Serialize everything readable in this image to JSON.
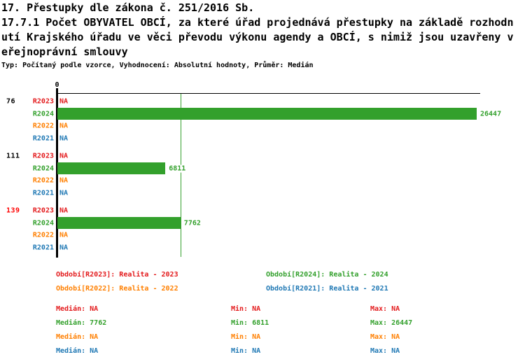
{
  "title": {
    "line1": "17. Přestupky dle zákona č. 251/2016 Sb.",
    "line2": "17.7.1 Počet OBYVATEL OBCÍ, za které úřad projednává přestupky na základě rozhodn",
    "line3": "utí Krajského úřadu ve věci převodu výkonu agendy a OBCÍ, s nimiž jsou uzavřeny v",
    "line4": "eřejnoprávní smlouvy",
    "meta": "Typ: Počítaný podle vzorce, Vyhodnocení: Absolutní hodnoty, Průměr: Medián"
  },
  "colors": {
    "r2023": "#e31a1c",
    "r2024": "#33a02c",
    "r2022": "#ff7f00",
    "r2021": "#1f78b4",
    "axis": "#000000",
    "median_line": "#33a02c",
    "highlight_group_label": "#ff0000"
  },
  "chart_data": {
    "type": "bar",
    "orientation": "horizontal",
    "x_axis": {
      "zero_label": "0",
      "max_value": 26447
    },
    "median_line_value": 7762,
    "series_order": [
      "R2023",
      "R2024",
      "R2022",
      "R2021"
    ],
    "na_text": "NA",
    "groups": [
      {
        "label": "76",
        "label_color": "#000000",
        "rows": [
          {
            "series": "R2023",
            "color": "#e31a1c",
            "value": null,
            "display": "NA"
          },
          {
            "series": "R2024",
            "color": "#33a02c",
            "value": 26447,
            "display": "26447"
          },
          {
            "series": "R2022",
            "color": "#ff7f00",
            "value": null,
            "display": "NA"
          },
          {
            "series": "R2021",
            "color": "#1f78b4",
            "value": null,
            "display": "NA"
          }
        ]
      },
      {
        "label": "111",
        "label_color": "#000000",
        "rows": [
          {
            "series": "R2023",
            "color": "#e31a1c",
            "value": null,
            "display": "NA"
          },
          {
            "series": "R2024",
            "color": "#33a02c",
            "value": 6811,
            "display": "6811"
          },
          {
            "series": "R2022",
            "color": "#ff7f00",
            "value": null,
            "display": "NA"
          },
          {
            "series": "R2021",
            "color": "#1f78b4",
            "value": null,
            "display": "NA"
          }
        ]
      },
      {
        "label": "139",
        "label_color": "#ff0000",
        "rows": [
          {
            "series": "R2023",
            "color": "#e31a1c",
            "value": null,
            "display": "NA"
          },
          {
            "series": "R2024",
            "color": "#33a02c",
            "value": 7762,
            "display": "7762"
          },
          {
            "series": "R2022",
            "color": "#ff7f00",
            "value": null,
            "display": "NA"
          },
          {
            "series": "R2021",
            "color": "#1f78b4",
            "value": null,
            "display": "NA"
          }
        ]
      }
    ]
  },
  "legend": [
    {
      "label": "Období[R2023]: Realita - 2023",
      "color": "#e31a1c"
    },
    {
      "label": "Období[R2024]: Realita - 2024",
      "color": "#33a02c"
    },
    {
      "label": "Období[R2022]: Realita - 2022",
      "color": "#ff7f00"
    },
    {
      "label": "Období[R2021]: Realita - 2021",
      "color": "#1f78b4"
    }
  ],
  "stats": [
    {
      "median": "Medián: NA",
      "min": "Min: NA",
      "max": "Max: NA",
      "color": "#e31a1c"
    },
    {
      "median": "Medián: 7762",
      "min": "Min: 6811",
      "max": "Max: 26447",
      "color": "#33a02c"
    },
    {
      "median": "Medián: NA",
      "min": "Min: NA",
      "max": "Max: NA",
      "color": "#ff7f00"
    },
    {
      "median": "Medián: NA",
      "min": "Min: NA",
      "max": "Max: NA",
      "color": "#1f78b4"
    }
  ]
}
